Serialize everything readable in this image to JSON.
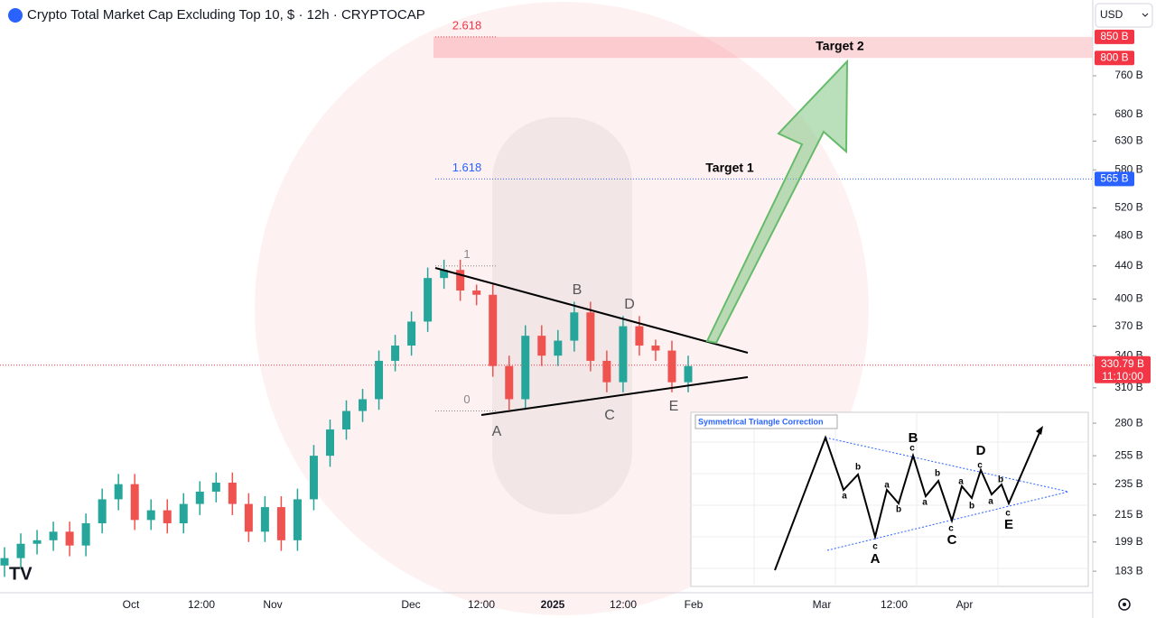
{
  "chart_data": {
    "type": "candlestick",
    "title": "Crypto Total Market Cap Excluding Top 10, $ · 12h · CRYPTOCAP",
    "currency": "USD",
    "log_scale": true,
    "up_color": "#26a69a",
    "down_color": "#ef5350",
    "open": [
      186,
      190,
      198,
      200,
      205,
      197,
      210,
      225,
      235,
      212,
      218,
      210,
      222,
      230,
      236,
      222,
      205,
      220,
      200,
      225,
      255,
      275,
      290,
      300,
      335,
      350,
      375,
      425,
      435,
      410,
      405,
      330,
      300,
      360,
      340,
      355,
      385,
      335,
      315,
      370,
      350,
      345,
      315
    ],
    "high": [
      196,
      204,
      206,
      211,
      211,
      216,
      232,
      242,
      242,
      225,
      225,
      229,
      237,
      243,
      243,
      229,
      227,
      227,
      232,
      263,
      283,
      299,
      309,
      345,
      361,
      386,
      438,
      448,
      448,
      417,
      417,
      340,
      371,
      371,
      366,
      397,
      397,
      345,
      381,
      381,
      356,
      355,
      340
    ],
    "low": [
      180,
      184,
      192,
      194,
      191,
      191,
      204,
      218,
      206,
      206,
      204,
      204,
      215,
      223,
      215,
      199,
      199,
      194,
      194,
      218,
      247,
      267,
      281,
      291,
      325,
      340,
      364,
      412,
      398,
      393,
      320,
      291,
      291,
      330,
      330,
      344,
      325,
      306,
      306,
      340,
      335,
      306,
      306
    ],
    "close": [
      190,
      198,
      200,
      205,
      197,
      210,
      225,
      235,
      212,
      218,
      210,
      222,
      230,
      236,
      222,
      205,
      220,
      200,
      225,
      255,
      275,
      290,
      300,
      335,
      350,
      375,
      425,
      435,
      410,
      405,
      330,
      300,
      360,
      340,
      355,
      385,
      335,
      315,
      370,
      350,
      345,
      315,
      330
    ],
    "ylim": [
      172,
      945
    ],
    "yticks": [
      {
        "value": 183,
        "label": "183 B"
      },
      {
        "value": 199,
        "label": "199 B"
      },
      {
        "value": 215,
        "label": "215 B"
      },
      {
        "value": 235,
        "label": "235 B"
      },
      {
        "value": 255,
        "label": "255 B"
      },
      {
        "value": 280,
        "label": "280 B"
      },
      {
        "value": 310,
        "label": "310 B"
      },
      {
        "value": 340,
        "label": "340 B"
      },
      {
        "value": 370,
        "label": "370 B"
      },
      {
        "value": 400,
        "label": "400 B"
      },
      {
        "value": 440,
        "label": "440 B"
      },
      {
        "value": 480,
        "label": "480 B"
      },
      {
        "value": 520,
        "label": "520 B"
      },
      {
        "value": 580,
        "label": "580 B"
      },
      {
        "value": 630,
        "label": "630 B"
      },
      {
        "value": 680,
        "label": "680 B"
      },
      {
        "value": 760,
        "label": "760 B"
      }
    ],
    "xticks": [
      "Oct",
      "12:00",
      "Nov",
      "Dec",
      "12:00",
      "2025",
      "12:00",
      "Feb",
      "Mar",
      "12:00",
      "Apr"
    ],
    "price_labels": [
      {
        "value": 850,
        "label": "850 B",
        "color": "#f23645"
      },
      {
        "value": 800,
        "label": "800 B",
        "color": "#f23645"
      },
      {
        "value": 565,
        "label": "565 B",
        "color": "#2962ff"
      }
    ],
    "last_price": {
      "value": 330.79,
      "label": "330.79 B",
      "countdown": "11:10:00",
      "color": "#f23645"
    },
    "fib_levels": [
      {
        "level": 2.618,
        "price": 850,
        "color": "#f23645"
      },
      {
        "level": 1.618,
        "price": 565,
        "color": "#2962ff"
      },
      {
        "level": 1,
        "price": 440,
        "color": "#888888"
      },
      {
        "level": 0,
        "price": 290,
        "color": "#888888"
      }
    ],
    "target_zone": [
      800,
      850
    ],
    "wave_labels": [
      "A",
      "B",
      "C",
      "D",
      "E"
    ],
    "targets": [
      "Target 1",
      "Target 2"
    ],
    "inset": {
      "title": "Symmetrical Triangle Correction",
      "wave_labels": [
        "A",
        "B",
        "C",
        "D",
        "E"
      ],
      "sub_labels": [
        "a",
        "b",
        "c",
        "a",
        "b",
        "c",
        "a",
        "b",
        "c",
        "a",
        "b",
        "c",
        "a",
        "b",
        "c"
      ]
    }
  }
}
